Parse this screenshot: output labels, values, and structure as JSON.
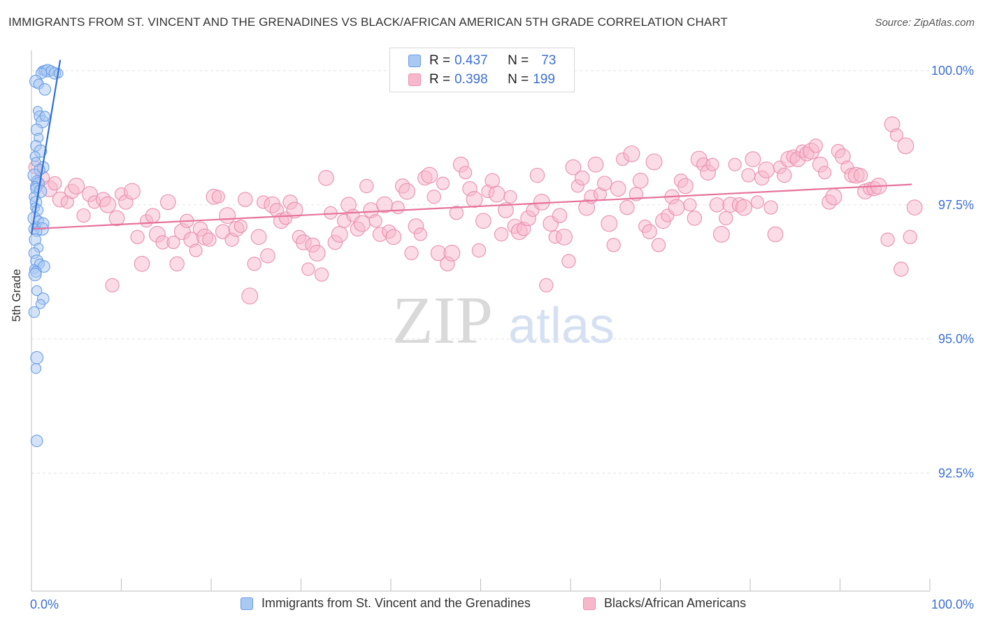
{
  "title": "IMMIGRANTS FROM ST. VINCENT AND THE GRENADINES VS BLACK/AFRICAN AMERICAN 5TH GRADE CORRELATION CHART",
  "source": "Source: ZipAtlas.com",
  "watermark": {
    "zip": "ZIP",
    "atlas": "atlas"
  },
  "colors": {
    "blue_fill": "#a9c8f2",
    "blue_stroke": "#6a9ee6",
    "blue_line": "#2f6fd6",
    "pink_fill": "#f7b8cb",
    "pink_stroke": "#ea8fae",
    "pink_line": "#e5739b",
    "tick_label": "#3b6fd4"
  },
  "legend": {
    "series": [
      {
        "r_label": "R = ",
        "r_value": "0.437",
        "n_label": "N = ",
        "n_value": "73"
      },
      {
        "r_label": "R = ",
        "r_value": "0.398",
        "n_label": "N = ",
        "n_value": "199"
      }
    ]
  },
  "chart_data": {
    "type": "scatter",
    "ylabel": "5th Grade",
    "xlim": [
      0,
      100
    ],
    "ylim": [
      90.3,
      100.3
    ],
    "x_tick_labels": [
      {
        "value": 0,
        "label": "0.0%"
      },
      {
        "value": 100,
        "label": "100.0%"
      }
    ],
    "y_tick_labels": [
      {
        "value": 100.0,
        "label": "100.0%"
      },
      {
        "value": 97.5,
        "label": "97.5%"
      },
      {
        "value": 95.0,
        "label": "95.0%"
      },
      {
        "value": 92.5,
        "label": "92.5%"
      }
    ],
    "grid": true,
    "legend_position": "top-center",
    "series": [
      {
        "name": "Immigrants from St. Vincent and the Grenadines",
        "color": "blue",
        "trend": {
          "x": [
            0,
            3.2
          ],
          "y": [
            96.95,
            100.2
          ]
        },
        "points": [
          [
            1.2,
            100.0
          ],
          [
            1.5,
            100.0
          ],
          [
            1.8,
            100.0
          ],
          [
            2.2,
            100.0
          ],
          [
            2.6,
            99.95
          ],
          [
            3.0,
            99.95
          ],
          [
            1.1,
            99.95
          ],
          [
            0.5,
            99.8
          ],
          [
            0.8,
            99.75
          ],
          [
            1.5,
            99.65
          ],
          [
            0.7,
            99.25
          ],
          [
            0.9,
            99.15
          ],
          [
            1.2,
            99.05
          ],
          [
            1.5,
            99.15
          ],
          [
            0.6,
            98.9
          ],
          [
            0.8,
            98.75
          ],
          [
            0.5,
            98.6
          ],
          [
            1.0,
            98.5
          ],
          [
            0.4,
            98.4
          ],
          [
            1.3,
            98.2
          ],
          [
            0.5,
            98.3
          ],
          [
            0.9,
            98.15
          ],
          [
            0.3,
            98.05
          ],
          [
            0.6,
            97.95
          ],
          [
            0.8,
            97.9
          ],
          [
            0.4,
            97.85
          ],
          [
            0.5,
            97.8
          ],
          [
            1.0,
            97.75
          ],
          [
            0.3,
            97.65
          ],
          [
            0.5,
            97.55
          ],
          [
            0.4,
            97.45
          ],
          [
            0.7,
            97.4
          ],
          [
            0.3,
            97.25
          ],
          [
            0.8,
            97.2
          ],
          [
            1.3,
            97.15
          ],
          [
            0.5,
            97.1
          ],
          [
            0.3,
            97.05
          ],
          [
            1.2,
            97.05
          ],
          [
            0.6,
            97.0
          ],
          [
            0.4,
            96.85
          ],
          [
            0.8,
            96.7
          ],
          [
            0.3,
            96.6
          ],
          [
            0.6,
            96.45
          ],
          [
            0.9,
            96.4
          ],
          [
            1.4,
            96.35
          ],
          [
            0.3,
            96.3
          ],
          [
            0.5,
            96.25
          ],
          [
            0.4,
            96.2
          ],
          [
            0.6,
            95.9
          ],
          [
            1.3,
            95.75
          ],
          [
            1.0,
            95.65
          ],
          [
            0.3,
            95.5
          ],
          [
            0.6,
            94.65
          ],
          [
            0.5,
            94.45
          ],
          [
            0.6,
            93.1
          ]
        ]
      },
      {
        "name": "Blacks/African Americans",
        "color": "pink",
        "trend": {
          "x": [
            0,
            98
          ],
          "y": [
            97.05,
            97.88
          ]
        },
        "points": [
          [
            0.4,
            98.2
          ],
          [
            1.2,
            98.0
          ],
          [
            2.0,
            97.8
          ],
          [
            2.6,
            97.9
          ],
          [
            3.2,
            97.6
          ],
          [
            4.0,
            97.55
          ],
          [
            4.5,
            97.75
          ],
          [
            5.0,
            97.85
          ],
          [
            5.8,
            97.3
          ],
          [
            6.5,
            97.7
          ],
          [
            7.0,
            97.55
          ],
          [
            8.0,
            97.6
          ],
          [
            8.5,
            97.5
          ],
          [
            9.0,
            96.0
          ],
          [
            9.5,
            97.25
          ],
          [
            10.0,
            97.7
          ],
          [
            10.5,
            97.55
          ],
          [
            11.2,
            97.75
          ],
          [
            11.8,
            96.9
          ],
          [
            12.3,
            96.4
          ],
          [
            12.8,
            97.2
          ],
          [
            13.5,
            97.3
          ],
          [
            14.0,
            96.95
          ],
          [
            14.6,
            96.8
          ],
          [
            15.2,
            97.55
          ],
          [
            15.8,
            96.8
          ],
          [
            16.2,
            96.4
          ],
          [
            16.8,
            97.0
          ],
          [
            17.3,
            97.2
          ],
          [
            17.8,
            96.85
          ],
          [
            18.3,
            96.65
          ],
          [
            18.8,
            97.05
          ],
          [
            19.3,
            96.9
          ],
          [
            19.8,
            96.85
          ],
          [
            20.3,
            97.65
          ],
          [
            20.8,
            97.65
          ],
          [
            21.3,
            97.0
          ],
          [
            21.8,
            97.3
          ],
          [
            22.3,
            96.85
          ],
          [
            22.8,
            97.05
          ],
          [
            23.3,
            97.1
          ],
          [
            23.8,
            97.6
          ],
          [
            24.3,
            95.8
          ],
          [
            24.8,
            96.4
          ],
          [
            25.3,
            96.9
          ],
          [
            25.8,
            97.55
          ],
          [
            26.3,
            96.55
          ],
          [
            26.8,
            97.5
          ],
          [
            27.3,
            97.4
          ],
          [
            27.8,
            97.2
          ],
          [
            28.3,
            97.25
          ],
          [
            28.8,
            97.55
          ],
          [
            29.3,
            97.4
          ],
          [
            29.8,
            96.9
          ],
          [
            30.3,
            96.8
          ],
          [
            30.8,
            96.3
          ],
          [
            31.3,
            96.75
          ],
          [
            31.8,
            96.6
          ],
          [
            32.3,
            96.2
          ],
          [
            32.8,
            98.0
          ],
          [
            33.3,
            97.35
          ],
          [
            33.8,
            96.8
          ],
          [
            34.3,
            96.95
          ],
          [
            34.8,
            97.2
          ],
          [
            35.3,
            97.5
          ],
          [
            35.8,
            97.3
          ],
          [
            36.3,
            97.05
          ],
          [
            36.8,
            97.15
          ],
          [
            37.3,
            97.85
          ],
          [
            37.8,
            97.4
          ],
          [
            38.3,
            97.2
          ],
          [
            38.8,
            96.95
          ],
          [
            39.3,
            97.5
          ],
          [
            39.8,
            97.0
          ],
          [
            40.3,
            96.9
          ],
          [
            40.8,
            97.45
          ],
          [
            41.3,
            97.85
          ],
          [
            41.8,
            97.75
          ],
          [
            42.3,
            96.6
          ],
          [
            42.8,
            97.1
          ],
          [
            43.3,
            96.95
          ],
          [
            43.8,
            98.0
          ],
          [
            44.3,
            98.05
          ],
          [
            44.8,
            97.65
          ],
          [
            45.3,
            96.6
          ],
          [
            45.8,
            97.9
          ],
          [
            46.3,
            96.4
          ],
          [
            46.8,
            96.6
          ],
          [
            47.3,
            97.35
          ],
          [
            47.8,
            98.25
          ],
          [
            48.3,
            98.1
          ],
          [
            48.8,
            97.8
          ],
          [
            49.3,
            97.6
          ],
          [
            49.8,
            96.65
          ],
          [
            50.3,
            97.2
          ],
          [
            50.8,
            97.75
          ],
          [
            51.3,
            97.95
          ],
          [
            51.8,
            97.7
          ],
          [
            52.3,
            96.95
          ],
          [
            52.8,
            97.4
          ],
          [
            53.3,
            97.65
          ],
          [
            53.8,
            97.1
          ],
          [
            54.3,
            97.0
          ],
          [
            54.8,
            97.05
          ],
          [
            55.3,
            97.25
          ],
          [
            55.8,
            97.4
          ],
          [
            56.3,
            98.05
          ],
          [
            56.8,
            97.55
          ],
          [
            57.3,
            96.0
          ],
          [
            57.8,
            97.15
          ],
          [
            58.3,
            96.9
          ],
          [
            58.8,
            97.3
          ],
          [
            59.3,
            96.9
          ],
          [
            59.8,
            96.45
          ],
          [
            60.3,
            98.2
          ],
          [
            60.8,
            97.85
          ],
          [
            61.3,
            98.0
          ],
          [
            61.8,
            97.45
          ],
          [
            62.3,
            97.65
          ],
          [
            62.8,
            98.25
          ],
          [
            63.3,
            97.7
          ],
          [
            63.8,
            97.9
          ],
          [
            64.3,
            97.15
          ],
          [
            64.8,
            96.75
          ],
          [
            65.3,
            97.8
          ],
          [
            65.8,
            98.35
          ],
          [
            66.3,
            97.45
          ],
          [
            66.8,
            98.45
          ],
          [
            67.3,
            97.7
          ],
          [
            67.8,
            97.95
          ],
          [
            68.3,
            97.1
          ],
          [
            68.8,
            97.0
          ],
          [
            69.3,
            98.3
          ],
          [
            69.8,
            96.75
          ],
          [
            70.3,
            97.2
          ],
          [
            70.8,
            97.3
          ],
          [
            71.3,
            97.65
          ],
          [
            71.8,
            97.45
          ],
          [
            72.3,
            97.95
          ],
          [
            72.8,
            97.85
          ],
          [
            73.3,
            97.5
          ],
          [
            73.8,
            97.25
          ],
          [
            74.3,
            98.35
          ],
          [
            74.8,
            98.25
          ],
          [
            75.3,
            98.1
          ],
          [
            75.8,
            98.25
          ],
          [
            76.3,
            97.5
          ],
          [
            76.8,
            96.95
          ],
          [
            77.3,
            97.25
          ],
          [
            77.8,
            97.5
          ],
          [
            78.3,
            98.25
          ],
          [
            78.8,
            97.5
          ],
          [
            79.3,
            97.45
          ],
          [
            79.8,
            98.05
          ],
          [
            80.3,
            98.35
          ],
          [
            80.8,
            97.55
          ],
          [
            81.3,
            98.0
          ],
          [
            81.8,
            98.15
          ],
          [
            82.3,
            97.45
          ],
          [
            82.8,
            96.95
          ],
          [
            83.3,
            98.2
          ],
          [
            83.8,
            98.05
          ],
          [
            84.3,
            98.35
          ],
          [
            84.8,
            98.4
          ],
          [
            85.3,
            98.35
          ],
          [
            85.8,
            98.5
          ],
          [
            86.3,
            98.45
          ],
          [
            86.8,
            98.5
          ],
          [
            87.3,
            98.6
          ],
          [
            87.8,
            98.25
          ],
          [
            88.3,
            98.1
          ],
          [
            88.8,
            97.55
          ],
          [
            89.3,
            97.65
          ],
          [
            89.8,
            98.5
          ],
          [
            90.3,
            98.4
          ],
          [
            90.8,
            98.2
          ],
          [
            91.3,
            98.05
          ],
          [
            91.8,
            98.05
          ],
          [
            92.3,
            98.05
          ],
          [
            92.8,
            97.75
          ],
          [
            93.3,
            97.8
          ],
          [
            93.8,
            97.8
          ],
          [
            94.3,
            97.85
          ],
          [
            95.3,
            96.85
          ],
          [
            95.8,
            99.0
          ],
          [
            96.3,
            98.8
          ],
          [
            96.8,
            96.3
          ],
          [
            97.3,
            98.6
          ],
          [
            97.8,
            96.9
          ],
          [
            98.3,
            97.45
          ]
        ]
      }
    ]
  },
  "bottom_legend": {
    "items": [
      {
        "label": "Immigrants from St. Vincent and the Grenadines"
      },
      {
        "label": "Blacks/African Americans"
      }
    ]
  }
}
